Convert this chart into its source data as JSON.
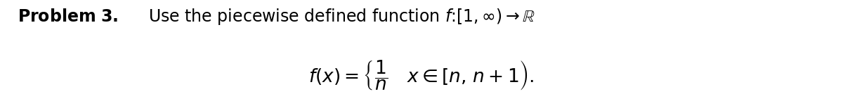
{
  "line1": "\\textbf{Problem 3.} Use the piecewise defined function $f\\colon [1,\\infty) \\to \\mathbb{R}$",
  "line2": "$f(x) = \\left\\{\\dfrac{1}{n} \\quad x \\in [n, n+1\\right)\\,.$",
  "background_color": "#ffffff",
  "text_color": "#000000",
  "fig_width": 12.0,
  "fig_height": 1.38,
  "dpi": 100
}
